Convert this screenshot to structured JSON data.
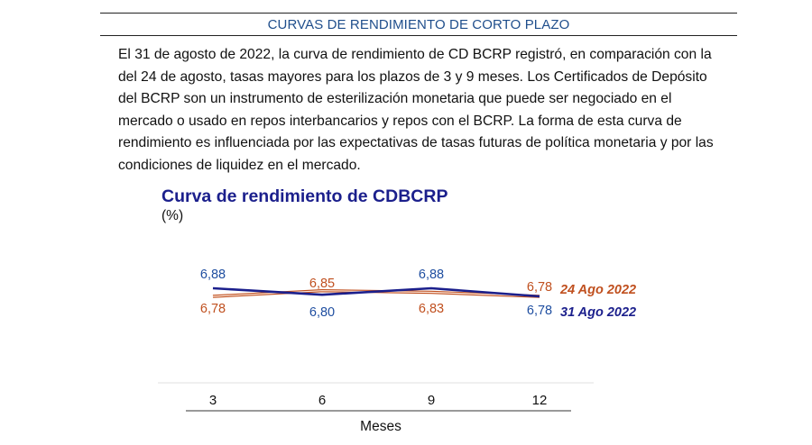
{
  "header": {
    "title": "CURVAS DE RENDIMIENTO DE CORTO PLAZO"
  },
  "paragraph": "El 31 de agosto de 2022, la curva de rendimiento de CD BCRP registró, en comparación con la del 24 de agosto, tasas mayores para los plazos de 3 y 9 meses. Los Certificados de Depósito del BCRP son un instrumento de esterilización monetaria que puede ser negociado en el mercado o usado en repos interbancarios y repos con el BCRP. La forma de esta curva de rendimiento es influenciada por las expectativas de tasas futuras de política monetaria y por las condiciones de liquidez en el mercado.",
  "chart_data": {
    "type": "line",
    "title": "Curva de rendimiento de CDBCRP",
    "unit": "(%)",
    "xlabel": "Meses",
    "ylabel": "",
    "categories": [
      "3",
      "6",
      "9",
      "12"
    ],
    "ylim": [
      6.7,
      6.95
    ],
    "grid": false,
    "legend_placement": "right end of lines",
    "series": [
      {
        "name": "24 Ago 2022",
        "values": [
          6.78,
          6.85,
          6.83,
          6.78
        ],
        "value_labels": [
          "6,78",
          "6,85",
          "6,83",
          "6,78"
        ],
        "color": "#c0501f",
        "style": "double-line"
      },
      {
        "name": "31 Ago 2022",
        "values": [
          6.88,
          6.8,
          6.88,
          6.78
        ],
        "value_labels": [
          "6,88",
          "6,80",
          "6,88",
          "6,78"
        ],
        "color": "#1b1f8c",
        "label_color": "#1f4ea0",
        "style": "solid"
      }
    ]
  }
}
